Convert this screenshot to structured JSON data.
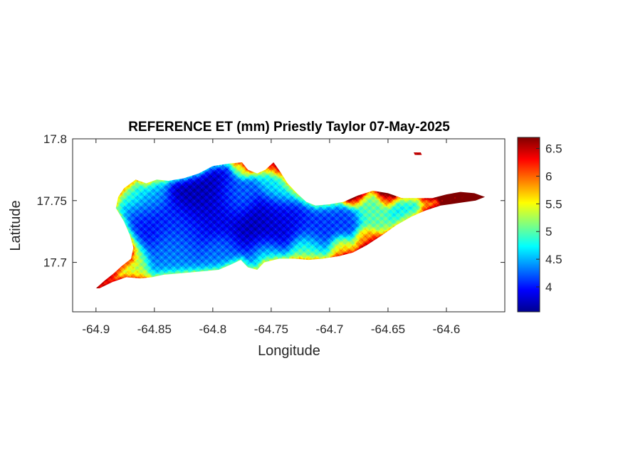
{
  "chart_data": {
    "type": "heatmap",
    "title": "REFERENCE ET (mm) Priestly Taylor 07-May-2025",
    "xlabel": "Longitude",
    "ylabel": "Latitude",
    "xlim": [
      -64.92,
      -64.55
    ],
    "ylim": [
      17.66,
      17.8
    ],
    "x_ticks": [
      -64.9,
      -64.85,
      -64.8,
      -64.75,
      -64.7,
      -64.65,
      -64.6
    ],
    "x_tick_labels": [
      "-64.9",
      "-64.85",
      "-64.8",
      "-64.75",
      "-64.7",
      "-64.65",
      "-64.6"
    ],
    "y_ticks": [
      17.7,
      17.75,
      17.8
    ],
    "y_tick_labels": [
      "17.7",
      "17.75",
      "17.8"
    ],
    "colorbar": {
      "colormap": "jet",
      "range": [
        3.55,
        6.7
      ],
      "ticks": [
        4,
        4.5,
        5,
        5.5,
        6,
        6.5
      ],
      "tick_labels": [
        "4",
        "4.5",
        "5",
        "5.5",
        "6",
        "6.5"
      ]
    },
    "island_outline": [
      [
        -64.9,
        17.679
      ],
      [
        -64.893,
        17.685
      ],
      [
        -64.885,
        17.691
      ],
      [
        -64.878,
        17.697
      ],
      [
        -64.87,
        17.703
      ],
      [
        -64.868,
        17.712
      ],
      [
        -64.871,
        17.722
      ],
      [
        -64.876,
        17.733
      ],
      [
        -64.883,
        17.744
      ],
      [
        -64.881,
        17.753
      ],
      [
        -64.876,
        17.76
      ],
      [
        -64.866,
        17.767
      ],
      [
        -64.857,
        17.764
      ],
      [
        -64.848,
        17.767
      ],
      [
        -64.838,
        17.766
      ],
      [
        -64.825,
        17.768
      ],
      [
        -64.812,
        17.772
      ],
      [
        -64.8,
        17.778
      ],
      [
        -64.786,
        17.78
      ],
      [
        -64.775,
        17.781
      ],
      [
        -64.77,
        17.775
      ],
      [
        -64.762,
        17.772
      ],
      [
        -64.755,
        17.775
      ],
      [
        -64.748,
        17.781
      ],
      [
        -64.742,
        17.773
      ],
      [
        -64.736,
        17.764
      ],
      [
        -64.728,
        17.756
      ],
      [
        -64.72,
        17.749
      ],
      [
        -64.712,
        17.746
      ],
      [
        -64.7,
        17.747
      ],
      [
        -64.688,
        17.749
      ],
      [
        -64.676,
        17.754
      ],
      [
        -64.663,
        17.758
      ],
      [
        -64.65,
        17.756
      ],
      [
        -64.638,
        17.752
      ],
      [
        -64.625,
        17.752
      ],
      [
        -64.612,
        17.752
      ],
      [
        -64.6,
        17.755
      ],
      [
        -64.588,
        17.757
      ],
      [
        -64.576,
        17.756
      ],
      [
        -64.567,
        17.753
      ],
      [
        -64.575,
        17.75
      ],
      [
        -64.59,
        17.748
      ],
      [
        -64.605,
        17.746
      ],
      [
        -64.618,
        17.742
      ],
      [
        -64.63,
        17.737
      ],
      [
        -64.643,
        17.73
      ],
      [
        -64.655,
        17.722
      ],
      [
        -64.668,
        17.714
      ],
      [
        -64.68,
        17.708
      ],
      [
        -64.692,
        17.705
      ],
      [
        -64.706,
        17.703
      ],
      [
        -64.718,
        17.702
      ],
      [
        -64.73,
        17.703
      ],
      [
        -64.743,
        17.703
      ],
      [
        -64.756,
        17.7
      ],
      [
        -64.762,
        17.694
      ],
      [
        -64.77,
        17.696
      ],
      [
        -64.776,
        17.702
      ],
      [
        -64.785,
        17.698
      ],
      [
        -64.795,
        17.694
      ],
      [
        -64.806,
        17.693
      ],
      [
        -64.818,
        17.692
      ],
      [
        -64.83,
        17.691
      ],
      [
        -64.842,
        17.69
      ],
      [
        -64.852,
        17.688
      ],
      [
        -64.862,
        17.687
      ],
      [
        -64.874,
        17.688
      ],
      [
        -64.886,
        17.684
      ],
      [
        -64.897,
        17.679
      ]
    ],
    "islet_outline": [
      [
        -64.628,
        17.789
      ],
      [
        -64.622,
        17.789
      ],
      [
        -64.621,
        17.787
      ],
      [
        -64.627,
        17.787
      ]
    ],
    "field_anchors": [
      {
        "x": -64.81,
        "y": 17.758,
        "value": 3.6,
        "r": 0.018
      },
      {
        "x": -64.8,
        "y": 17.745,
        "value": 3.9,
        "r": 0.02
      },
      {
        "x": -64.76,
        "y": 17.723,
        "value": 3.7,
        "r": 0.02
      },
      {
        "x": -64.742,
        "y": 17.735,
        "value": 3.9,
        "r": 0.016
      },
      {
        "x": -64.855,
        "y": 17.731,
        "value": 3.95,
        "r": 0.016
      },
      {
        "x": -64.828,
        "y": 17.728,
        "value": 4.1,
        "r": 0.016
      },
      {
        "x": -64.71,
        "y": 17.728,
        "value": 4.1,
        "r": 0.016
      },
      {
        "x": -64.688,
        "y": 17.733,
        "value": 4.15,
        "r": 0.012
      },
      {
        "x": -64.78,
        "y": 17.755,
        "value": 4.3,
        "r": 0.013
      },
      {
        "x": -64.86,
        "y": 17.752,
        "value": 4.5,
        "r": 0.015
      },
      {
        "x": -64.835,
        "y": 17.712,
        "value": 4.35,
        "r": 0.014
      },
      {
        "x": -64.79,
        "y": 17.705,
        "value": 4.3,
        "r": 0.014
      },
      {
        "x": -64.74,
        "y": 17.762,
        "value": 4.7,
        "r": 0.013
      },
      {
        "x": -64.755,
        "y": 17.706,
        "value": 4.9,
        "r": 0.012
      },
      {
        "x": -64.875,
        "y": 17.705,
        "value": 5.3,
        "r": 0.012
      },
      {
        "x": -64.89,
        "y": 17.686,
        "value": 5.7,
        "r": 0.007
      },
      {
        "x": -64.87,
        "y": 17.757,
        "value": 5.0,
        "r": 0.009
      },
      {
        "x": -64.775,
        "y": 17.776,
        "value": 5.3,
        "r": 0.006
      },
      {
        "x": -64.745,
        "y": 17.776,
        "value": 5.9,
        "r": 0.005
      },
      {
        "x": -64.72,
        "y": 17.708,
        "value": 5.0,
        "r": 0.012
      },
      {
        "x": -64.69,
        "y": 17.712,
        "value": 5.6,
        "r": 0.008
      },
      {
        "x": -64.67,
        "y": 17.72,
        "value": 5.8,
        "r": 0.007
      },
      {
        "x": -64.665,
        "y": 17.74,
        "value": 5.0,
        "r": 0.01
      },
      {
        "x": -64.68,
        "y": 17.752,
        "value": 6.0,
        "r": 0.006
      },
      {
        "x": -64.65,
        "y": 17.754,
        "value": 6.1,
        "r": 0.006
      },
      {
        "x": -64.635,
        "y": 17.743,
        "value": 4.7,
        "r": 0.01
      },
      {
        "x": -64.615,
        "y": 17.746,
        "value": 5.7,
        "r": 0.006
      },
      {
        "x": -64.595,
        "y": 17.752,
        "value": 6.5,
        "r": 0.008
      },
      {
        "x": -64.575,
        "y": 17.754,
        "value": 6.6,
        "r": 0.008
      },
      {
        "x": -64.624,
        "y": 17.788,
        "value": 6.5,
        "r": 0.005
      }
    ]
  }
}
